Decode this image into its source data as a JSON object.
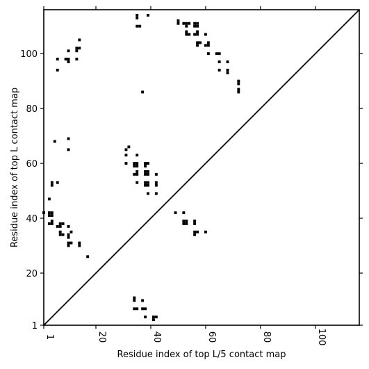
{
  "chart_data": {
    "type": "scatter",
    "xlabel": "Residue index of top L/5 contact map",
    "ylabel": "Residue index of top L contact map",
    "xlim": [
      1,
      116
    ],
    "ylim": [
      1,
      116
    ],
    "xticks": [
      1,
      20,
      40,
      60,
      80,
      100
    ],
    "yticks": [
      1,
      20,
      40,
      60,
      80,
      100
    ],
    "xtick_labels": [
      "1",
      "20",
      "40",
      "60",
      "80",
      "100"
    ],
    "ytick_labels": [
      "1",
      "20",
      "40",
      "60",
      "80",
      "100"
    ],
    "diagonal": true,
    "grid": false,
    "marker_color": "#000000",
    "upper_triangle_points": [
      [
        35,
        113
      ],
      [
        35,
        114
      ],
      [
        39,
        114
      ],
      [
        35,
        110
      ],
      [
        36,
        110
      ],
      [
        50,
        111
      ],
      [
        50,
        112
      ],
      [
        52,
        111
      ],
      [
        53,
        111
      ],
      [
        54,
        111
      ],
      [
        53,
        110
      ],
      [
        56,
        110
      ],
      [
        57,
        110
      ],
      [
        56,
        111
      ],
      [
        57,
        111
      ],
      [
        53,
        108
      ],
      [
        53,
        107
      ],
      [
        54,
        107
      ],
      [
        56,
        107
      ],
      [
        57,
        107
      ],
      [
        57,
        108
      ],
      [
        60,
        107
      ],
      [
        57,
        104
      ],
      [
        58,
        104
      ],
      [
        57,
        103
      ],
      [
        60,
        103
      ],
      [
        61,
        103
      ],
      [
        61,
        104
      ],
      [
        61,
        100
      ],
      [
        64,
        100
      ],
      [
        65,
        100
      ],
      [
        65,
        97
      ],
      [
        68,
        97
      ],
      [
        65,
        94
      ],
      [
        68,
        94
      ],
      [
        68,
        93
      ],
      [
        72,
        90
      ],
      [
        72,
        89
      ],
      [
        72,
        87
      ],
      [
        72,
        86
      ],
      [
        37,
        86
      ],
      [
        14,
        105
      ],
      [
        13,
        102
      ],
      [
        14,
        102
      ],
      [
        13,
        101
      ],
      [
        10,
        101
      ],
      [
        6,
        98
      ],
      [
        9,
        98
      ],
      [
        10,
        98
      ],
      [
        13,
        98
      ],
      [
        10,
        97
      ],
      [
        6,
        94
      ]
    ],
    "lower_triangle_points": [
      [
        5,
        68
      ],
      [
        10,
        69
      ],
      [
        10,
        65
      ],
      [
        32,
        66
      ],
      [
        31,
        65
      ],
      [
        31,
        63
      ],
      [
        35,
        63
      ],
      [
        31,
        60
      ],
      [
        34,
        60
      ],
      [
        35,
        60
      ],
      [
        34,
        59
      ],
      [
        35,
        59
      ],
      [
        35,
        57
      ],
      [
        34,
        56
      ],
      [
        35,
        56
      ],
      [
        35,
        53
      ],
      [
        38,
        60
      ],
      [
        39,
        60
      ],
      [
        38,
        59
      ],
      [
        38,
        57
      ],
      [
        39,
        57
      ],
      [
        38,
        56
      ],
      [
        39,
        56
      ],
      [
        42,
        56
      ],
      [
        38,
        53
      ],
      [
        39,
        53
      ],
      [
        38,
        52
      ],
      [
        39,
        52
      ],
      [
        42,
        53
      ],
      [
        42,
        52
      ],
      [
        39,
        49
      ],
      [
        42,
        49
      ],
      [
        4,
        53
      ],
      [
        4,
        52
      ],
      [
        6,
        53
      ],
      [
        1,
        42
      ],
      [
        3,
        47
      ],
      [
        3,
        42
      ],
      [
        4,
        42
      ],
      [
        3,
        41
      ],
      [
        4,
        41
      ],
      [
        4,
        39
      ],
      [
        3,
        38
      ],
      [
        4,
        38
      ],
      [
        6,
        37
      ],
      [
        7,
        37
      ],
      [
        7,
        38
      ],
      [
        8,
        38
      ],
      [
        10,
        37
      ],
      [
        7,
        35
      ],
      [
        7,
        34
      ],
      [
        8,
        34
      ],
      [
        10,
        34
      ],
      [
        11,
        35
      ],
      [
        10,
        33
      ],
      [
        10,
        31
      ],
      [
        11,
        31
      ],
      [
        10,
        30
      ],
      [
        14,
        31
      ],
      [
        14,
        30
      ],
      [
        17,
        26
      ],
      [
        49,
        42
      ],
      [
        52,
        42
      ],
      [
        52,
        39
      ],
      [
        53,
        39
      ],
      [
        52,
        38
      ],
      [
        53,
        38
      ],
      [
        56,
        39
      ],
      [
        56,
        38
      ],
      [
        56,
        35
      ],
      [
        57,
        35
      ],
      [
        56,
        34
      ],
      [
        60,
        35
      ],
      [
        34,
        11
      ],
      [
        34,
        10
      ],
      [
        37,
        10
      ],
      [
        34,
        7
      ],
      [
        35,
        7
      ],
      [
        37,
        7
      ],
      [
        38,
        7
      ],
      [
        38,
        4
      ],
      [
        41,
        4
      ],
      [
        42,
        4
      ],
      [
        41,
        3
      ]
    ]
  }
}
